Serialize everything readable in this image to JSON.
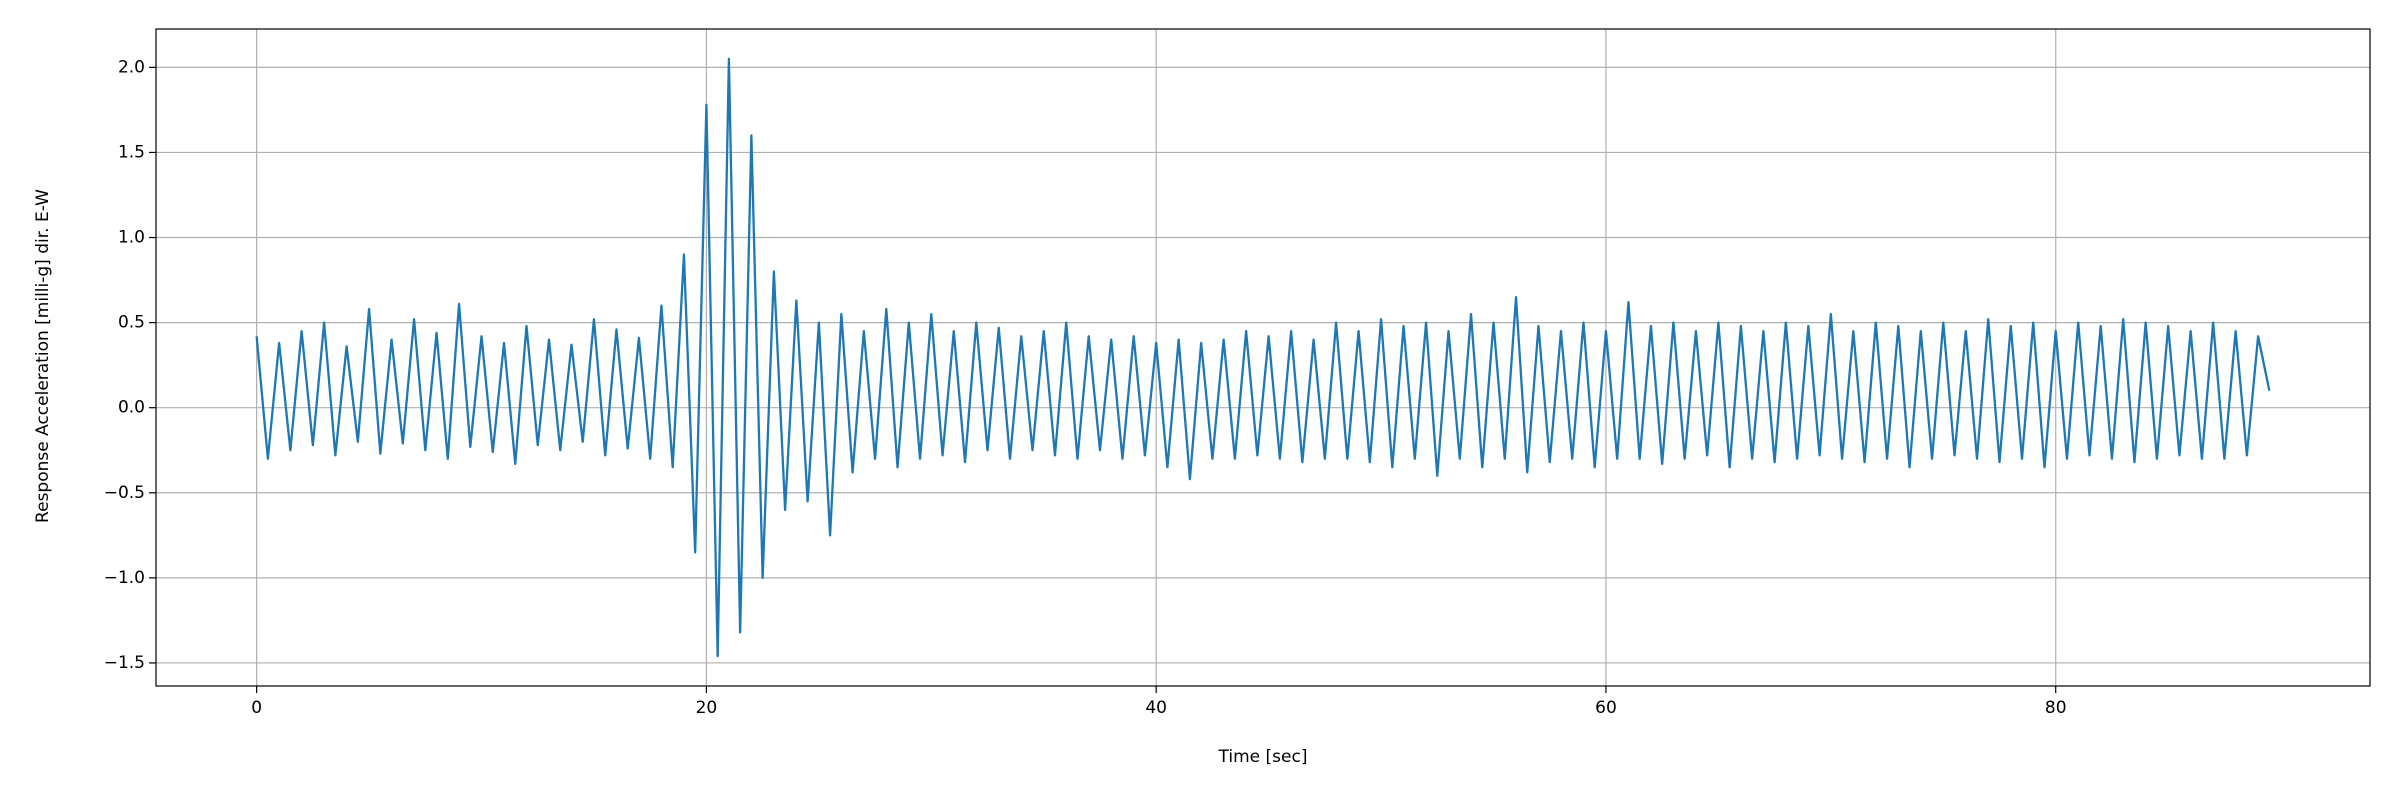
{
  "chart_data": {
    "type": "line",
    "xlabel": "Time [sec]",
    "ylabel": "Response Acceleration [milli-g] dir. E-W",
    "color": "#1f77b4",
    "grid": true,
    "xlim": [
      -4.475,
      93.975
    ],
    "ylim": [
      -1.6355,
      2.2255
    ],
    "xticks": [
      0,
      20,
      40,
      60,
      80
    ],
    "yticks": [
      {
        "value": -1.5,
        "label": "−1.5"
      },
      {
        "value": -1.0,
        "label": "−1.0"
      },
      {
        "value": -0.5,
        "label": "−0.5"
      },
      {
        "value": 0,
        "label": "0.0"
      },
      0.5,
      {
        "value": 1.0,
        "label": "1.0"
      },
      1.5,
      {
        "value": 2.0,
        "label": "2.0"
      }
    ],
    "x": [
      0,
      0.5,
      1,
      1.5,
      2,
      2.5,
      3,
      3.5,
      4,
      4.5,
      5,
      5.5,
      6,
      6.5,
      7,
      7.5,
      8,
      8.5,
      9,
      9.5,
      10,
      10.5,
      11,
      11.5,
      12,
      12.5,
      13,
      13.5,
      14,
      14.5,
      15,
      15.5,
      16,
      16.5,
      17,
      17.5,
      18,
      18.5,
      19,
      19.5,
      20,
      20.5,
      21,
      21.5,
      22,
      22.5,
      23,
      23.5,
      24,
      24.5,
      25,
      25.5,
      26,
      26.5,
      27,
      27.5,
      28,
      28.5,
      29,
      29.5,
      30,
      30.5,
      31,
      31.5,
      32,
      32.5,
      33,
      33.5,
      34,
      34.5,
      35,
      35.5,
      36,
      36.5,
      37,
      37.5,
      38,
      38.5,
      39,
      39.5,
      40,
      40.5,
      41,
      41.5,
      42,
      42.5,
      43,
      43.5,
      44,
      44.5,
      45,
      45.5,
      46,
      46.5,
      47,
      47.5,
      48,
      48.5,
      49,
      49.5,
      50,
      50.5,
      51,
      51.5,
      52,
      52.5,
      53,
      53.5,
      54,
      54.5,
      55,
      55.5,
      56,
      56.5,
      57,
      57.5,
      58,
      58.5,
      59,
      59.5,
      60,
      60.5,
      61,
      61.5,
      62,
      62.5,
      63,
      63.5,
      64,
      64.5,
      65,
      65.5,
      66,
      66.5,
      67,
      67.5,
      68,
      68.5,
      69,
      69.5,
      70,
      70.5,
      71,
      71.5,
      72,
      72.5,
      73,
      73.5,
      74,
      74.5,
      75,
      75.5,
      76,
      76.5,
      77,
      77.5,
      78,
      78.5,
      79,
      79.5,
      80,
      80.5,
      81,
      81.5,
      82,
      82.5,
      83,
      83.5,
      84,
      84.5,
      85,
      85.5,
      86,
      86.5,
      87,
      87.5,
      88,
      88.5,
      89,
      89.5
    ],
    "values": [
      0.42,
      -0.3,
      0.38,
      -0.25,
      0.45,
      -0.22,
      0.5,
      -0.28,
      0.36,
      -0.2,
      0.58,
      -0.27,
      0.4,
      -0.21,
      0.52,
      -0.25,
      0.44,
      -0.3,
      0.61,
      -0.23,
      0.42,
      -0.26,
      0.38,
      -0.33,
      0.48,
      -0.22,
      0.4,
      -0.25,
      0.37,
      -0.2,
      0.52,
      -0.28,
      0.46,
      -0.24,
      0.41,
      -0.3,
      0.6,
      -0.35,
      0.9,
      -0.85,
      1.78,
      -1.46,
      2.05,
      -1.32,
      1.6,
      -1.0,
      0.8,
      -0.6,
      0.63,
      -0.55,
      0.5,
      -0.75,
      0.55,
      -0.38,
      0.45,
      -0.3,
      0.58,
      -0.35,
      0.5,
      -0.3,
      0.55,
      -0.28,
      0.45,
      -0.32,
      0.5,
      -0.25,
      0.47,
      -0.3,
      0.42,
      -0.25,
      0.45,
      -0.28,
      0.5,
      -0.3,
      0.42,
      -0.25,
      0.4,
      -0.3,
      0.42,
      -0.28,
      0.38,
      -0.35,
      0.4,
      -0.42,
      0.38,
      -0.3,
      0.4,
      -0.3,
      0.45,
      -0.28,
      0.42,
      -0.3,
      0.45,
      -0.32,
      0.4,
      -0.3,
      0.5,
      -0.3,
      0.45,
      -0.32,
      0.52,
      -0.35,
      0.48,
      -0.3,
      0.5,
      -0.4,
      0.45,
      -0.3,
      0.55,
      -0.35,
      0.5,
      -0.3,
      0.65,
      -0.38,
      0.48,
      -0.32,
      0.45,
      -0.3,
      0.5,
      -0.35,
      0.45,
      -0.3,
      0.62,
      -0.3,
      0.48,
      -0.33,
      0.5,
      -0.3,
      0.45,
      -0.28,
      0.5,
      -0.35,
      0.48,
      -0.3,
      0.45,
      -0.32,
      0.5,
      -0.3,
      0.48,
      -0.28,
      0.55,
      -0.3,
      0.45,
      -0.32,
      0.5,
      -0.3,
      0.48,
      -0.35,
      0.45,
      -0.3,
      0.5,
      -0.28,
      0.45,
      -0.3,
      0.52,
      -0.32,
      0.48,
      -0.3,
      0.5,
      -0.35,
      0.45,
      -0.3,
      0.5,
      -0.28,
      0.48,
      -0.3,
      0.52,
      -0.32,
      0.5,
      -0.3,
      0.48,
      -0.28,
      0.45,
      -0.3,
      0.5,
      -0.3,
      0.45,
      -0.28,
      0.42,
      0.1
    ]
  }
}
